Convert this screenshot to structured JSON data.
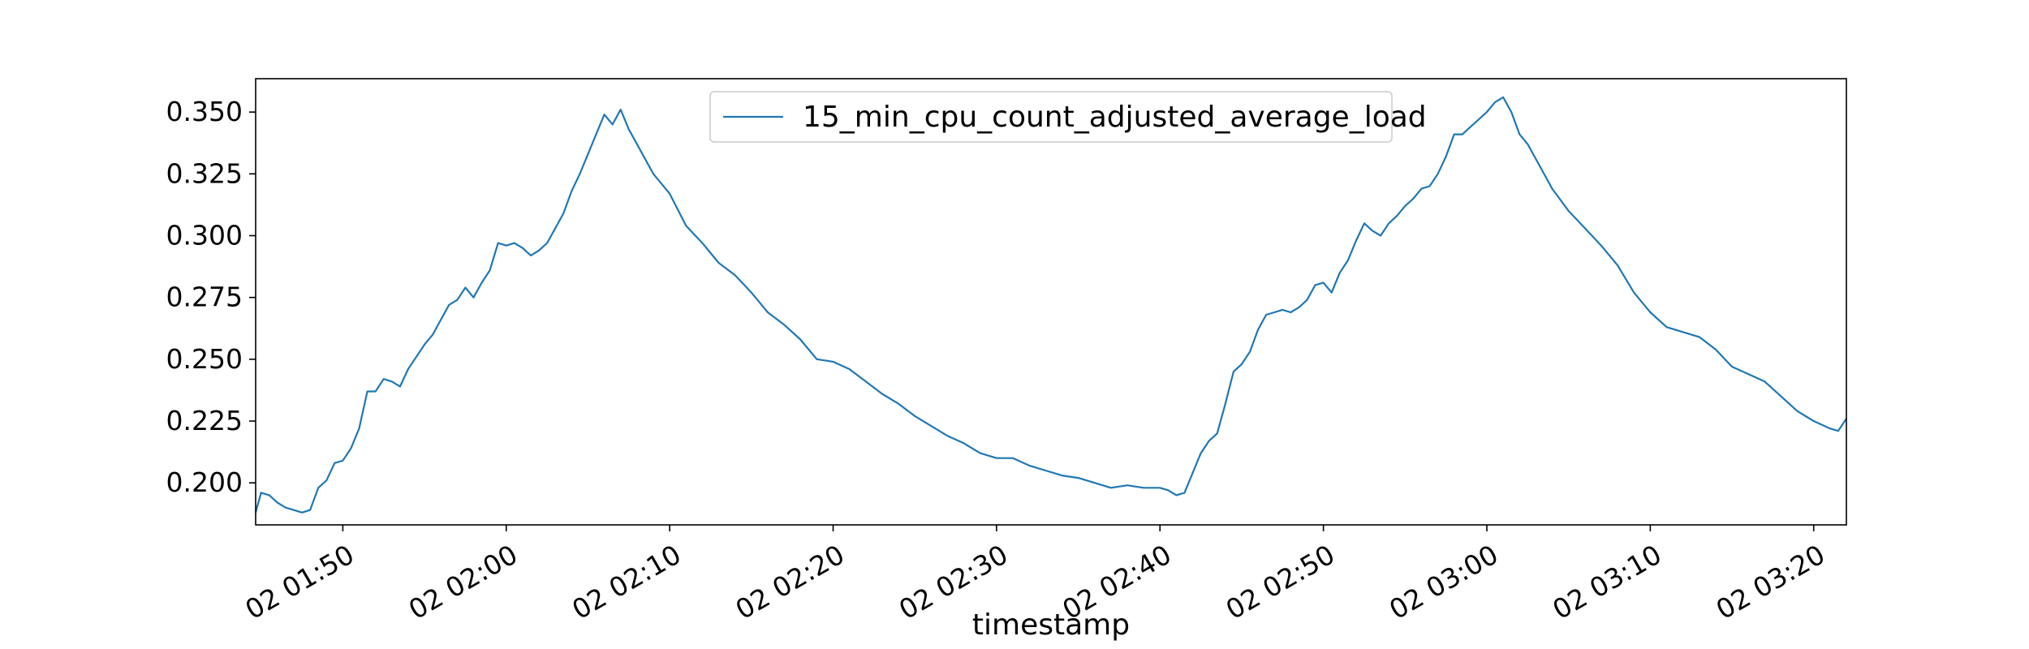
{
  "chart_data": {
    "type": "line",
    "xlabel": "timestamp",
    "ylabel": "",
    "title": "",
    "x_tick_labels": [
      "02 01:50",
      "02 02:00",
      "02 02:10",
      "02 02:20",
      "02 02:30",
      "02 02:40",
      "02 02:50",
      "02 03:00",
      "02 03:10",
      "02 03:20"
    ],
    "y_tick_labels": [
      "0.200",
      "0.225",
      "0.250",
      "0.275",
      "0.300",
      "0.325",
      "0.350"
    ],
    "y_ticks": [
      0.2,
      0.225,
      0.25,
      0.275,
      0.3,
      0.325,
      0.35
    ],
    "ylim": [
      0.183,
      0.3635
    ],
    "xlim": [
      "01:44:40",
      "03:22:00"
    ],
    "legend_position": "upper-center",
    "grid": false,
    "series": [
      {
        "name": "15_min_cpu_count_adjusted_average_load",
        "color": "#1f77b4",
        "x": [
          "01:44:40",
          "01:45:00",
          "01:45:30",
          "01:46:00",
          "01:46:30",
          "01:47:00",
          "01:47:30",
          "01:48:00",
          "01:48:30",
          "01:49:00",
          "01:49:30",
          "01:50:00",
          "01:50:30",
          "01:51:00",
          "01:51:30",
          "01:52:00",
          "01:52:30",
          "01:53:00",
          "01:53:30",
          "01:54:00",
          "01:54:30",
          "01:55:00",
          "01:55:30",
          "01:56:00",
          "01:56:30",
          "01:57:00",
          "01:57:30",
          "01:58:00",
          "01:58:30",
          "01:59:00",
          "01:59:30",
          "02:00:00",
          "02:00:30",
          "02:01:00",
          "02:01:30",
          "02:02:00",
          "02:02:30",
          "02:03:00",
          "02:03:30",
          "02:04:00",
          "02:04:30",
          "02:05:00",
          "02:05:30",
          "02:06:00",
          "02:06:30",
          "02:07:00",
          "02:07:30",
          "02:08:00",
          "02:08:30",
          "02:09:00",
          "02:10:00",
          "02:11:00",
          "02:12:00",
          "02:13:00",
          "02:14:00",
          "02:15:00",
          "02:16:00",
          "02:17:00",
          "02:18:00",
          "02:19:00",
          "02:20:00",
          "02:21:00",
          "02:22:00",
          "02:23:00",
          "02:24:00",
          "02:25:00",
          "02:26:00",
          "02:27:00",
          "02:28:00",
          "02:29:00",
          "02:30:00",
          "02:31:00",
          "02:32:00",
          "02:33:00",
          "02:34:00",
          "02:35:00",
          "02:36:00",
          "02:37:00",
          "02:38:00",
          "02:39:00",
          "02:40:00",
          "02:40:30",
          "02:41:00",
          "02:41:30",
          "02:42:00",
          "02:42:30",
          "02:43:00",
          "02:43:30",
          "02:44:00",
          "02:44:30",
          "02:45:00",
          "02:45:30",
          "02:46:00",
          "02:46:30",
          "02:47:00",
          "02:47:30",
          "02:48:00",
          "02:48:30",
          "02:49:00",
          "02:49:30",
          "02:50:00",
          "02:50:30",
          "02:51:00",
          "02:51:30",
          "02:52:00",
          "02:52:30",
          "02:53:00",
          "02:53:30",
          "02:54:00",
          "02:54:30",
          "02:55:00",
          "02:55:30",
          "02:56:00",
          "02:56:30",
          "02:57:00",
          "02:57:30",
          "02:58:00",
          "02:58:30",
          "02:59:00",
          "02:59:30",
          "03:00:00",
          "03:00:30",
          "03:01:00",
          "03:01:30",
          "03:02:00",
          "03:02:30",
          "03:03:00",
          "03:04:00",
          "03:05:00",
          "03:06:00",
          "03:07:00",
          "03:08:00",
          "03:09:00",
          "03:10:00",
          "03:11:00",
          "03:12:00",
          "03:13:00",
          "03:14:00",
          "03:15:00",
          "03:16:00",
          "03:17:00",
          "03:18:00",
          "03:19:00",
          "03:20:00",
          "03:21:00",
          "03:21:30",
          "03:22:00"
        ],
        "y": [
          0.188,
          0.196,
          0.195,
          0.192,
          0.19,
          0.189,
          0.188,
          0.189,
          0.198,
          0.201,
          0.208,
          0.209,
          0.214,
          0.222,
          0.237,
          0.237,
          0.242,
          0.241,
          0.239,
          0.246,
          0.251,
          0.256,
          0.26,
          0.266,
          0.272,
          0.274,
          0.279,
          0.275,
          0.281,
          0.286,
          0.297,
          0.296,
          0.297,
          0.295,
          0.292,
          0.294,
          0.297,
          0.303,
          0.309,
          0.318,
          0.325,
          0.333,
          0.341,
          0.349,
          0.345,
          0.351,
          0.343,
          0.337,
          0.331,
          0.325,
          0.317,
          0.304,
          0.297,
          0.289,
          0.284,
          0.277,
          0.269,
          0.264,
          0.258,
          0.25,
          0.249,
          0.246,
          0.241,
          0.236,
          0.232,
          0.227,
          0.223,
          0.219,
          0.216,
          0.212,
          0.21,
          0.21,
          0.207,
          0.205,
          0.203,
          0.202,
          0.2,
          0.198,
          0.199,
          0.198,
          0.198,
          0.197,
          0.195,
          0.196,
          0.204,
          0.212,
          0.217,
          0.22,
          0.232,
          0.245,
          0.248,
          0.253,
          0.262,
          0.268,
          0.269,
          0.27,
          0.269,
          0.271,
          0.274,
          0.28,
          0.281,
          0.277,
          0.285,
          0.29,
          0.298,
          0.305,
          0.302,
          0.3,
          0.305,
          0.308,
          0.312,
          0.315,
          0.319,
          0.32,
          0.325,
          0.332,
          0.341,
          0.341,
          0.344,
          0.347,
          0.35,
          0.354,
          0.356,
          0.35,
          0.341,
          0.337,
          0.331,
          0.319,
          0.31,
          0.303,
          0.296,
          0.288,
          0.277,
          0.269,
          0.263,
          0.261,
          0.259,
          0.254,
          0.247,
          0.244,
          0.241,
          0.235,
          0.229,
          0.225,
          0.222,
          0.221,
          0.226
        ]
      }
    ]
  }
}
